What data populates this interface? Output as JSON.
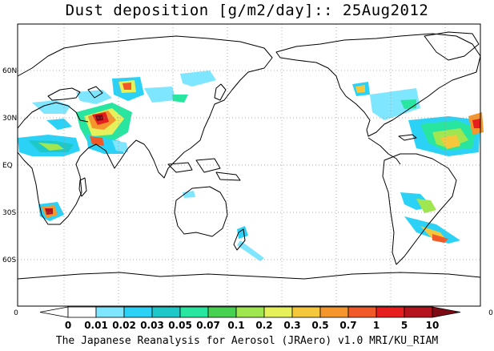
{
  "title": "Dust deposition [g/m2/day]:: 25Aug2012",
  "footer": "The Japanese Reanalysis for Aerosol (JRAero) v1.0 MRI/KU_RIAM",
  "lat_labels": [
    "60N",
    "30N",
    "EQ",
    "30S",
    "60S"
  ],
  "lat_values": [
    60,
    30,
    0,
    -30,
    -60
  ],
  "axis_corner_labels": {
    "left": "0",
    "right": "0"
  },
  "colorbar": {
    "labels": [
      "0",
      "0.01",
      "0.02",
      "0.03",
      "0.05",
      "0.07",
      "0.1",
      "0.2",
      "0.3",
      "0.5",
      "0.7",
      "1",
      "5",
      "10"
    ],
    "colors": [
      "#ffffff",
      "#ffffff",
      "#7fe6ff",
      "#2cd2f5",
      "#1ec8c8",
      "#28e6a0",
      "#46d250",
      "#a0e650",
      "#e6f05a",
      "#f5c83c",
      "#f5962d",
      "#f05a28",
      "#e61e1e",
      "#b4141e",
      "#7d0a14"
    ]
  }
}
